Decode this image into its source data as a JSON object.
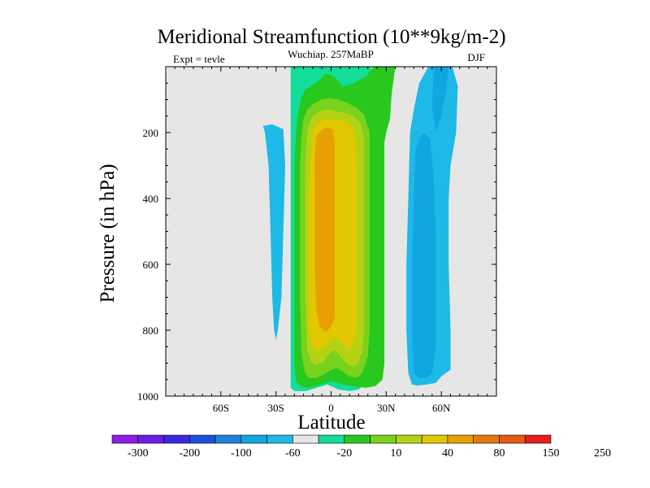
{
  "chart_data": {
    "type": "contour",
    "title": "Meridional Streamfunction (10**9kg/m-2)",
    "center_label": "Wuchiap. 257MaBP",
    "left_label": "Expt = tevle",
    "right_label": "DJF",
    "xlabel": "Latitude",
    "ylabel": "Pressure (in hPa)",
    "xlim": [
      -90,
      90
    ],
    "ylim": [
      1000,
      0
    ],
    "x_ticks": [
      {
        "value": -60,
        "label": "60S"
      },
      {
        "value": -30,
        "label": "30S"
      },
      {
        "value": 0,
        "label": "0"
      },
      {
        "value": 30,
        "label": "30N"
      },
      {
        "value": 60,
        "label": "60N"
      }
    ],
    "y_ticks": [
      {
        "value": 200,
        "label": "200"
      },
      {
        "value": 400,
        "label": "400"
      },
      {
        "value": 600,
        "label": "600"
      },
      {
        "value": 800,
        "label": "800"
      },
      {
        "value": 1000,
        "label": "1000"
      }
    ],
    "background_color": "#e6e6e6",
    "colorbar": {
      "levels": [
        "-300",
        "-200",
        "-100",
        "-60",
        "-20",
        "10",
        "40",
        "80",
        "150",
        "250"
      ],
      "colors": [
        "#8c1ee6",
        "#6a1ee6",
        "#3c28dc",
        "#1e50dc",
        "#1e82dc",
        "#12a6e0",
        "#1eb9e6",
        "#e6e6e6",
        "#14dc9b",
        "#28c81e",
        "#78d21e",
        "#b4d214",
        "#e1c800",
        "#e6a000",
        "#e67814",
        "#e65a14",
        "#e61e1e"
      ],
      "label_positions": [
        1,
        3,
        5,
        7,
        9,
        11,
        13,
        15,
        17,
        19
      ]
    },
    "fields": [
      {
        "name": "southern-negative-cell",
        "value_range": "-20 to 10",
        "color": "#1eb9e6",
        "polygon": [
          [
            -37,
            180
          ],
          [
            -32,
            175
          ],
          [
            -26,
            190
          ],
          [
            -25,
            300
          ],
          [
            -26,
            500
          ],
          [
            -27,
            700
          ],
          [
            -29,
            800
          ],
          [
            -30,
            830
          ],
          [
            -31,
            800
          ],
          [
            -32,
            700
          ],
          [
            -33,
            500
          ],
          [
            -34,
            300
          ],
          [
            -36,
            200
          ]
        ]
      },
      {
        "name": "northern-negative-cell",
        "value_range": "-20 to 10",
        "color": "#1eb9e6",
        "polygon": [
          [
            45,
            130
          ],
          [
            48,
            50
          ],
          [
            53,
            0
          ],
          [
            60,
            0
          ],
          [
            66,
            0
          ],
          [
            69,
            60
          ],
          [
            68,
            200
          ],
          [
            65,
            300
          ],
          [
            64,
            400
          ],
          [
            64,
            600
          ],
          [
            65,
            800
          ],
          [
            65,
            920
          ],
          [
            60,
            940
          ],
          [
            57,
            960
          ],
          [
            52,
            965
          ],
          [
            47,
            968
          ],
          [
            44,
            965
          ],
          [
            42,
            930
          ],
          [
            41,
            800
          ],
          [
            41,
            600
          ],
          [
            42,
            400
          ],
          [
            43,
            200
          ]
        ]
      },
      {
        "name": "northern-negative-core",
        "value_range": "-60 to -20",
        "color": "#12a6e0",
        "polygon": [
          [
            46,
            250
          ],
          [
            50,
            200
          ],
          [
            54,
            220
          ],
          [
            56,
            350
          ],
          [
            57,
            500
          ],
          [
            57,
            700
          ],
          [
            57,
            850
          ],
          [
            55,
            930
          ],
          [
            52,
            945
          ],
          [
            48,
            945
          ],
          [
            45,
            930
          ],
          [
            44,
            800
          ],
          [
            44,
            600
          ],
          [
            45,
            400
          ]
        ]
      },
      {
        "name": "northern-negative-top",
        "value_range": "-60 to -20",
        "color": "#12a6e0",
        "polygon": [
          [
            56,
            0
          ],
          [
            64,
            0
          ],
          [
            63,
            60
          ],
          [
            60,
            150
          ],
          [
            57,
            200
          ],
          [
            55,
            120
          ]
        ]
      },
      {
        "name": "main-cell-level-1",
        "value_range": "10 to 40",
        "color": "#14dc9b",
        "polygon": [
          [
            -22,
            0
          ],
          [
            -18,
            0
          ],
          [
            -12,
            0
          ],
          [
            -6,
            0
          ],
          [
            -3,
            0
          ],
          [
            3,
            0
          ],
          [
            9,
            0
          ],
          [
            19,
            0
          ],
          [
            22,
            0
          ],
          [
            21,
            50
          ],
          [
            21,
            120
          ],
          [
            21,
            250
          ],
          [
            21,
            500
          ],
          [
            21,
            700
          ],
          [
            21,
            850
          ],
          [
            21,
            920
          ],
          [
            19,
            960
          ],
          [
            15,
            980
          ],
          [
            10,
            985
          ],
          [
            4,
            980
          ],
          [
            -2,
            965
          ],
          [
            -8,
            975
          ],
          [
            -14,
            985
          ],
          [
            -20,
            985
          ],
          [
            -22,
            975
          ],
          [
            -22,
            950
          ],
          [
            -22,
            800
          ],
          [
            -22,
            600
          ],
          [
            -22,
            400
          ],
          [
            -22,
            200
          ],
          [
            -22,
            100
          ],
          [
            -22,
            50
          ]
        ]
      },
      {
        "name": "main-cell-level-2",
        "value_range": "40 to 80",
        "color": "#28c81e",
        "polygon": [
          [
            -18,
            140
          ],
          [
            -16,
            90
          ],
          [
            -14,
            70
          ],
          [
            -10,
            55
          ],
          [
            -6,
            40
          ],
          [
            -3,
            20
          ],
          [
            2,
            30
          ],
          [
            6,
            60
          ],
          [
            10,
            55
          ],
          [
            14,
            45
          ],
          [
            19,
            30
          ],
          [
            23,
            0
          ],
          [
            35,
            0
          ],
          [
            34,
            40
          ],
          [
            33,
            80
          ],
          [
            32,
            160
          ],
          [
            30,
            200
          ],
          [
            29,
            230
          ],
          [
            29,
            250
          ],
          [
            29,
            400
          ],
          [
            29,
            600
          ],
          [
            29,
            800
          ],
          [
            29,
            900
          ],
          [
            28,
            950
          ],
          [
            24,
            970
          ],
          [
            19,
            975
          ],
          [
            12,
            970
          ],
          [
            6,
            965
          ],
          [
            0,
            955
          ],
          [
            -6,
            965
          ],
          [
            -12,
            975
          ],
          [
            -17,
            970
          ],
          [
            -19,
            955
          ],
          [
            -20,
            900
          ],
          [
            -20,
            700
          ],
          [
            -20,
            500
          ],
          [
            -20,
            300
          ],
          [
            -19,
            200
          ]
        ]
      },
      {
        "name": "main-cell-level-3",
        "value_range": "80 to 150",
        "color": "#78d21e",
        "polygon": [
          [
            -15,
            160
          ],
          [
            -13,
            130
          ],
          [
            -9,
            110
          ],
          [
            -5,
            100
          ],
          [
            -1,
            95
          ],
          [
            4,
            100
          ],
          [
            9,
            110
          ],
          [
            14,
            125
          ],
          [
            18,
            145
          ],
          [
            21,
            200
          ],
          [
            21,
            400
          ],
          [
            21,
            600
          ],
          [
            21,
            800
          ],
          [
            20,
            880
          ],
          [
            17,
            930
          ],
          [
            14,
            945
          ],
          [
            10,
            940
          ],
          [
            6,
            925
          ],
          [
            3,
            915
          ],
          [
            0,
            920
          ],
          [
            -4,
            935
          ],
          [
            -8,
            945
          ],
          [
            -12,
            945
          ],
          [
            -14,
            930
          ],
          [
            -16,
            880
          ],
          [
            -17,
            700
          ],
          [
            -17,
            500
          ],
          [
            -17,
            300
          ],
          [
            -16,
            200
          ]
        ]
      },
      {
        "name": "main-cell-level-4",
        "value_range": "150 to 250",
        "color": "#b4d214",
        "polygon": [
          [
            -12,
            170
          ],
          [
            -10,
            150
          ],
          [
            -6,
            135
          ],
          [
            -2,
            130
          ],
          [
            3,
            135
          ],
          [
            8,
            140
          ],
          [
            12,
            150
          ],
          [
            16,
            170
          ],
          [
            18,
            220
          ],
          [
            18,
            400
          ],
          [
            18,
            600
          ],
          [
            18,
            800
          ],
          [
            17,
            860
          ],
          [
            15,
            900
          ],
          [
            12,
            910
          ],
          [
            9,
            905
          ],
          [
            5,
            880
          ],
          [
            2,
            860
          ],
          [
            -1,
            870
          ],
          [
            -4,
            895
          ],
          [
            -8,
            905
          ],
          [
            -11,
            895
          ],
          [
            -13,
            860
          ],
          [
            -14,
            700
          ],
          [
            -14,
            500
          ],
          [
            -14,
            300
          ],
          [
            -13,
            200
          ]
        ]
      },
      {
        "name": "main-cell-level-5",
        "value_range": "250 to 300",
        "color": "#e1c800",
        "polygon": [
          [
            -10,
            190
          ],
          [
            -7,
            170
          ],
          [
            -3,
            160
          ],
          [
            1,
            160
          ],
          [
            6,
            165
          ],
          [
            10,
            175
          ],
          [
            13,
            200
          ],
          [
            14,
            300
          ],
          [
            14,
            500
          ],
          [
            14,
            700
          ],
          [
            14,
            800
          ],
          [
            12,
            850
          ],
          [
            9,
            860
          ],
          [
            6,
            840
          ],
          [
            3,
            820
          ],
          [
            0,
            830
          ],
          [
            -3,
            850
          ],
          [
            -7,
            860
          ],
          [
            -10,
            850
          ],
          [
            -12,
            800
          ],
          [
            -12,
            600
          ],
          [
            -12,
            400
          ],
          [
            -11,
            250
          ]
        ]
      },
      {
        "name": "main-cell-level-6",
        "value_range": "300 to 350",
        "color": "#e6a000",
        "polygon": [
          [
            -8,
            210
          ],
          [
            -5,
            190
          ],
          [
            -2,
            185
          ],
          [
            1,
            190
          ],
          [
            2,
            230
          ],
          [
            2,
            400
          ],
          [
            2,
            600
          ],
          [
            2,
            760
          ],
          [
            0,
            790
          ],
          [
            -3,
            805
          ],
          [
            -6,
            790
          ],
          [
            -8,
            740
          ],
          [
            -9,
            600
          ],
          [
            -9,
            400
          ],
          [
            -9,
            280
          ]
        ]
      }
    ]
  }
}
